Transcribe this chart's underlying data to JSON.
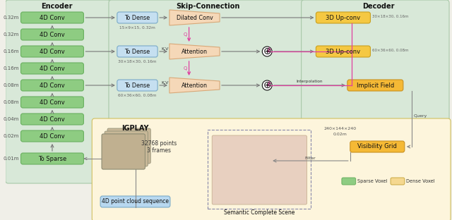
{
  "bg_outer": "#f0efe8",
  "bg_encoder": "#d8e8d8",
  "bg_skip": "#d8e8d8",
  "bg_decoder": "#d8e8d8",
  "bg_bottom": "#fdf5dc",
  "color_green_fc": "#8ecc82",
  "color_green_ec": "#6ab060",
  "color_blue_fc": "#c5dff0",
  "color_blue_ec": "#7aaac8",
  "color_orange_fc": "#f5b935",
  "color_orange_ec": "#c89020",
  "color_upconv_fc": "#f5c842",
  "color_upconv_ec": "#c8a020",
  "color_salmon_fc": "#f5d8b8",
  "color_salmon_ec": "#d8a878",
  "color_gray_arrow": "#888888",
  "color_pink_arrow": "#e040a0",
  "color_bottom_blue_fc": "#b8d8f0",
  "color_bottom_blue_ec": "#7aaac8",
  "enc_title": "Encoder",
  "skip_title": "Skip-Connection",
  "dec_title": "Decoder",
  "enc_boxes": [
    "4D Conv",
    "4D Conv",
    "4D Conv",
    "4D Conv",
    "4D Conv",
    "4D Conv",
    "4D Conv",
    "4D Conv",
    "To Sparse"
  ],
  "enc_labels": [
    "0.32m",
    "0.32m",
    "0.16m",
    "0.16m",
    "0.08m",
    "0.08m",
    "0.04m",
    "0.02m",
    "0.01m"
  ],
  "td_sublabels": [
    "15×9×15, 0.32m",
    "30×18×30, 0.16m",
    "60×36×60, 0.08m"
  ],
  "dec_sublabel1": "30×18×30, 0.16m",
  "dec_sublabel2": "60×36×60, 0.08m",
  "dim_label1": "240×144×240",
  "dim_label2": "0.02m"
}
